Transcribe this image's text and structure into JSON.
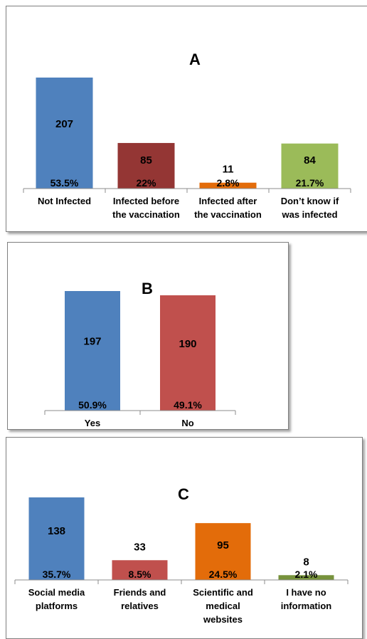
{
  "chart_data": [
    {
      "type": "bar",
      "title": "A",
      "categories": [
        [
          "Not Infected"
        ],
        [
          "Infected before",
          "the vaccination"
        ],
        [
          "Infected after",
          "the vaccination"
        ],
        [
          "Don’t know if",
          "was infected"
        ]
      ],
      "values": [
        207,
        85,
        11,
        84
      ],
      "percent_labels": [
        "53.5%",
        "22%",
        "2.8%",
        "21.7%"
      ],
      "colors": [
        "#4f81bd",
        "#943634",
        "#e36c0a",
        "#9bbb59"
      ],
      "grid": false
    },
    {
      "type": "bar",
      "title": "B",
      "categories": [
        [
          "Yes"
        ],
        [
          "No"
        ]
      ],
      "values": [
        197,
        190
      ],
      "percent_labels": [
        "50.9%",
        "49.1%"
      ],
      "colors": [
        "#4f81bd",
        "#c0504d"
      ],
      "grid": false
    },
    {
      "type": "bar",
      "title": "C",
      "categories": [
        [
          "Social media",
          "platforms"
        ],
        [
          "Friends and",
          "relatives"
        ],
        [
          "Scientific and",
          "medical",
          "websites"
        ],
        [
          "I have no",
          "information"
        ]
      ],
      "values": [
        138,
        33,
        95,
        8
      ],
      "percent_labels": [
        "35.7%",
        "8.5%",
        "24.5%",
        "2.1%"
      ],
      "colors": [
        "#4f81bd",
        "#c0504d",
        "#e36c0a",
        "#77933c"
      ],
      "grid": false
    }
  ]
}
